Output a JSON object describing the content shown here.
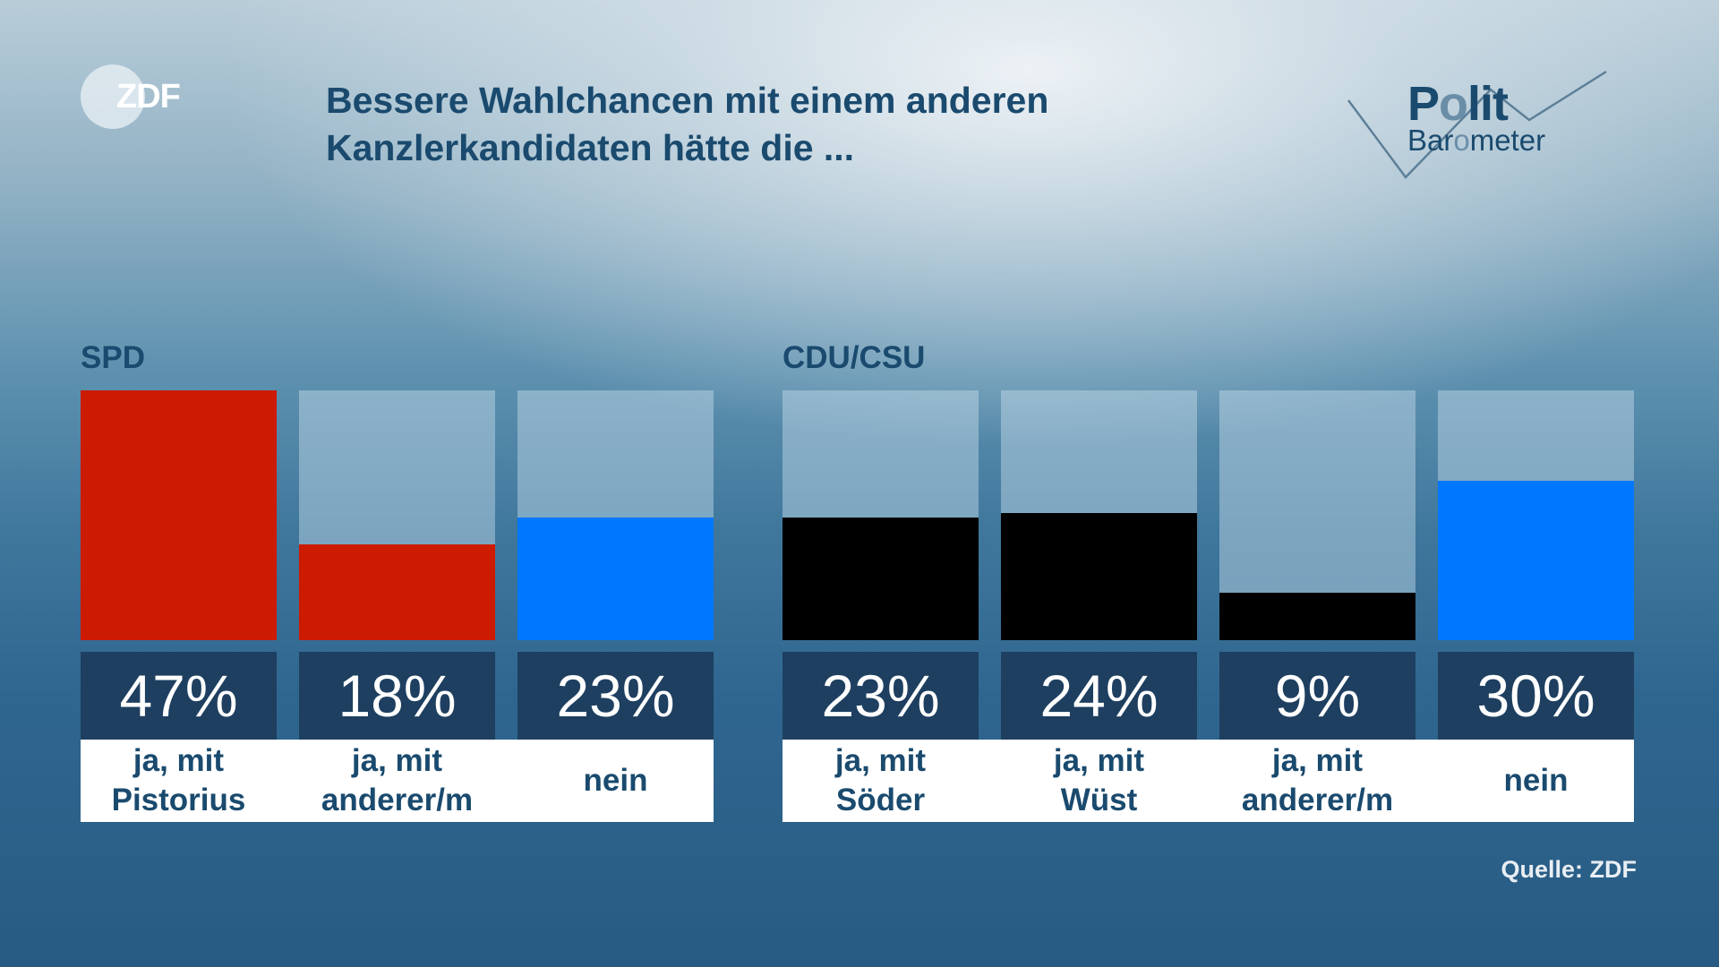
{
  "header": {
    "logo": "ZDF",
    "title_line1": "Bessere Wahlchancen mit einem anderen",
    "title_line2": "Kanzlerkandidaten hätte die ...",
    "brand_line1": "Polit",
    "brand_line2": "Barometer"
  },
  "footer": {
    "source": "Quelle: ZDF"
  },
  "colors": {
    "spd": "#cc1b00",
    "union": "#000000",
    "nein": "#0077ff",
    "value_box": "#1e3f60",
    "text": "#1a4a6e"
  },
  "chart_data": {
    "type": "bar",
    "title": "Bessere Wahlchancen mit einem anderen Kanzlerkandidaten hätte die ...",
    "unit": "%",
    "ylim": [
      0,
      47
    ],
    "groups": [
      {
        "name": "SPD",
        "categories": [
          "ja, mit Pistorius",
          "ja, mit anderer/m",
          "nein"
        ],
        "labels_line1": [
          "ja, mit",
          "ja, mit",
          ""
        ],
        "labels_line2": [
          "Pistorius",
          "anderer/m",
          "nein"
        ],
        "values": [
          47,
          18,
          23
        ],
        "display": [
          "47%",
          "18%",
          "23%"
        ],
        "colors": [
          "#cc1b00",
          "#cc1b00",
          "#0077ff"
        ]
      },
      {
        "name": "CDU/CSU",
        "categories": [
          "ja, mit Söder",
          "ja, mit Wüst",
          "ja, mit anderer/m",
          "nein"
        ],
        "labels_line1": [
          "ja, mit",
          "ja, mit",
          "ja, mit",
          ""
        ],
        "labels_line2": [
          "Söder",
          "Wüst",
          "anderer/m",
          "nein"
        ],
        "values": [
          23,
          24,
          9,
          30
        ],
        "display": [
          "23%",
          "24%",
          "9%",
          "30%"
        ],
        "colors": [
          "#000000",
          "#000000",
          "#000000",
          "#0077ff"
        ]
      }
    ]
  }
}
